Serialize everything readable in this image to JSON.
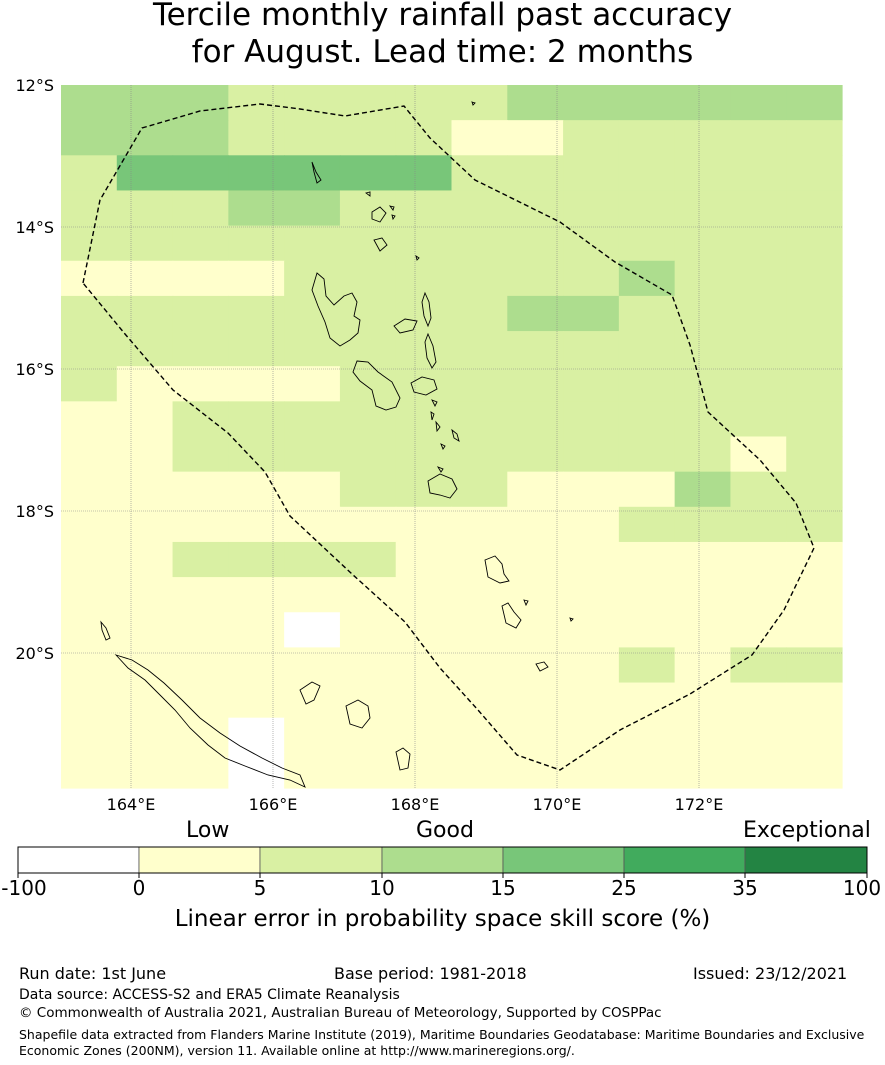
{
  "title": {
    "line1": "Tercile monthly rainfall past accuracy",
    "line2": "for August. Lead time: 2 months"
  },
  "map": {
    "lat_labels": [
      "12°S",
      "14°S",
      "16°S",
      "18°S",
      "20°S"
    ],
    "lon_labels": [
      "164°E",
      "166°E",
      "168°E",
      "170°E",
      "172°E"
    ],
    "lon_range": [
      163,
      174
    ],
    "lat_range": [
      -21.9,
      -12
    ],
    "region_outline": "EEZ boundary (dashed)"
  },
  "colorbar": {
    "headers": {
      "low": "Low",
      "good": "Good",
      "exceptional": "Exceptional"
    },
    "ticks": [
      "-100",
      "0",
      "5",
      "10",
      "15",
      "25",
      "35",
      "100"
    ],
    "colors": [
      "#ffffff",
      "#ffffcc",
      "#d9f0a3",
      "#addd8e",
      "#78c679",
      "#41ab5d",
      "#238443"
    ],
    "label": "Linear error in probability space skill score (%)"
  },
  "footer": {
    "run_date": "Run date: 1st June",
    "base_period": "Base period: 1981-2018",
    "issued": "Issued: 23/12/2021",
    "data_source": "Data source: ACCESS-S2 and ERA5 Climate Reanalysis",
    "copyright": "© Commonwealth of Australia 2021, Australian Bureau of Meteorology, Supported by COSPPac",
    "shapefile_line1": "Shapefile data extracted from Flanders Marine Institute (2019), Maritime Boundaries Geodatabase: Maritime Boundaries and Exclusive",
    "shapefile_line2": "Economic Zones (200NM), version 11. Available online at http://www.marineregions.org/."
  },
  "grid_levels": [
    "33322222333333",
    "33322221122222",
    "24444442222222",
    "22233222222222",
    "22222222222222",
    "11112222223222",
    "22222222332222",
    "22222222222222",
    "21111222222222",
    "11222222222222",
    "11222222222212",
    "11111222111322",
    "11111111112222",
    "11222211111111",
    "11111111111111",
    "11110111111111",
    "11111111112122",
    "11111111111111",
    "11101111111111",
    "11101111111111"
  ]
}
